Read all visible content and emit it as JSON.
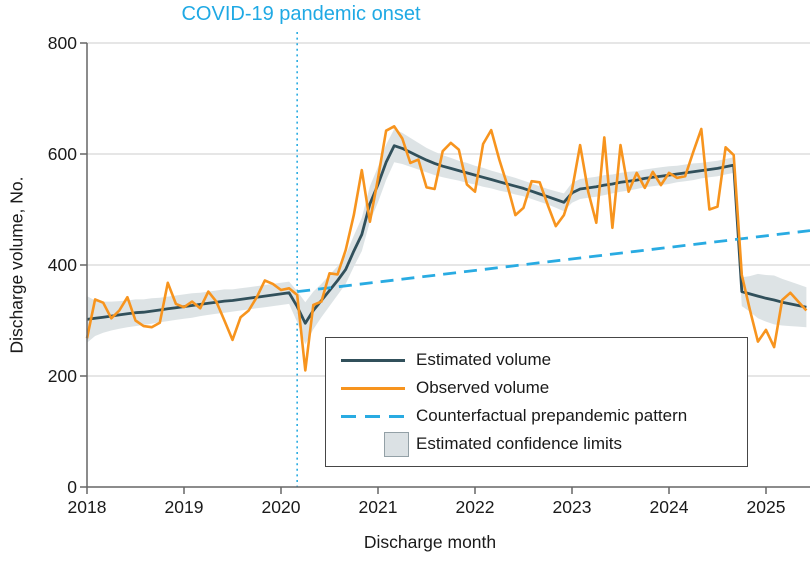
{
  "title": {
    "text": "COVID-19 pandemic onset"
  },
  "y_axis": {
    "label": "Discharge volume, No.",
    "ticks": [
      0,
      200,
      400,
      600,
      800
    ],
    "range": [
      0,
      800
    ]
  },
  "x_axis": {
    "label": "Discharge month",
    "ticks": [
      2018,
      2019,
      2020,
      2021,
      2022,
      2023,
      2024,
      2025
    ]
  },
  "legend": {
    "items": [
      {
        "key": "estimated",
        "label": "Estimated volume"
      },
      {
        "key": "observed",
        "label": "Observed volume"
      },
      {
        "key": "counterfactual",
        "label": "Counterfactual prepandemic pattern"
      },
      {
        "key": "confidence",
        "label": "Estimated confidence limits"
      }
    ]
  },
  "colors": {
    "observed": "#F7941E",
    "estimated": "#31505B",
    "counterfactual": "#29ABE2",
    "annotation_line": "#29ABE2",
    "title_text": "#1FA9E4",
    "confidence_band": "#DBE1E4",
    "gridline": "#D8D8D8",
    "axis": "#666666",
    "text": "#1A1A1A"
  },
  "chart_data": {
    "type": "line",
    "x_unit": "month",
    "ylim": [
      0,
      800
    ],
    "grid": "horizontal",
    "legend_position": "inside-bottom-center",
    "annotations": {
      "vline_month": "2020-03",
      "vline_label": "COVID-19 pandemic onset"
    },
    "months": [
      "2018-01",
      "2018-02",
      "2018-03",
      "2018-04",
      "2018-05",
      "2018-06",
      "2018-07",
      "2018-08",
      "2018-09",
      "2018-10",
      "2018-11",
      "2018-12",
      "2019-01",
      "2019-02",
      "2019-03",
      "2019-04",
      "2019-05",
      "2019-06",
      "2019-07",
      "2019-08",
      "2019-09",
      "2019-10",
      "2019-11",
      "2019-12",
      "2020-01",
      "2020-02",
      "2020-03",
      "2020-04",
      "2020-05",
      "2020-06",
      "2020-07",
      "2020-08",
      "2020-09",
      "2020-10",
      "2020-11",
      "2020-12",
      "2021-01",
      "2021-02",
      "2021-03",
      "2021-04",
      "2021-05",
      "2021-06",
      "2021-07",
      "2021-08",
      "2021-09",
      "2021-10",
      "2021-11",
      "2021-12",
      "2022-01",
      "2022-02",
      "2022-03",
      "2022-04",
      "2022-05",
      "2022-06",
      "2022-07",
      "2022-08",
      "2022-09",
      "2022-10",
      "2022-11",
      "2022-12",
      "2023-01",
      "2023-02",
      "2023-03",
      "2023-04",
      "2023-05",
      "2023-06",
      "2023-07",
      "2023-08",
      "2023-09",
      "2023-10",
      "2023-11",
      "2023-12",
      "2024-01",
      "2024-02",
      "2024-03",
      "2024-04",
      "2024-05",
      "2024-06",
      "2024-07",
      "2024-08",
      "2024-09",
      "2024-10",
      "2024-11",
      "2024-12",
      "2025-01",
      "2025-02",
      "2025-03",
      "2025-04",
      "2025-05",
      "2025-06"
    ],
    "series": [
      {
        "name": "Estimated volume",
        "values": [
          302,
          304,
          306,
          308,
          310,
          312,
          314,
          315,
          317,
          319,
          321,
          323,
          325,
          327,
          329,
          331,
          333,
          335,
          336,
          338,
          340,
          342,
          344,
          346,
          348,
          350,
          325,
          295,
          318,
          336,
          354,
          372,
          392,
          425,
          455,
          510,
          545,
          585,
          615,
          610,
          603,
          596,
          589,
          583,
          578,
          574,
          570,
          566,
          562,
          558,
          554,
          550,
          546,
          542,
          538,
          533,
          528,
          523,
          518,
          513,
          530,
          537,
          539,
          541,
          544,
          546,
          549,
          551,
          553,
          556,
          558,
          560,
          562,
          564,
          566,
          568,
          570,
          572,
          574,
          577,
          580,
          352,
          348,
          344,
          340,
          337,
          333,
          330,
          327,
          324
        ]
      },
      {
        "name": "Observed volume",
        "values": [
          268,
          338,
          332,
          304,
          318,
          342,
          300,
          290,
          288,
          296,
          368,
          330,
          324,
          334,
          322,
          352,
          334,
          300,
          265,
          306,
          318,
          342,
          372,
          366,
          355,
          358,
          346,
          210,
          328,
          334,
          385,
          383,
          427,
          490,
          571,
          478,
          556,
          642,
          650,
          628,
          584,
          590,
          540,
          537,
          605,
          620,
          608,
          545,
          532,
          618,
          643,
          590,
          544,
          490,
          503,
          551,
          549,
          508,
          470,
          490,
          535,
          616,
          532,
          476,
          630,
          467,
          616,
          532,
          566,
          539,
          568,
          544,
          566,
          557,
          560,
          604,
          645,
          500,
          505,
          612,
          598,
          382,
          320,
          262,
          283,
          252,
          337,
          350,
          334,
          318
        ]
      },
      {
        "name": "Counterfactual prepandemic pattern",
        "start_month": "2020-03",
        "start_value": 352,
        "end_month": "2025-06",
        "end_value": 462
      },
      {
        "name": "Estimated confidence limits",
        "half_widths": [
          42,
          32,
          28,
          26,
          25,
          24,
          24,
          23,
          23,
          22,
          22,
          22,
          22,
          22,
          21,
          21,
          21,
          21,
          20,
          20,
          20,
          20,
          20,
          20,
          20,
          20,
          28,
          38,
          34,
          30,
          28,
          26,
          26,
          28,
          30,
          32,
          32,
          32,
          30,
          28,
          26,
          24,
          22,
          21,
          20,
          19,
          18,
          18,
          17,
          17,
          16,
          16,
          15,
          15,
          14,
          14,
          14,
          14,
          15,
          16,
          18,
          18,
          18,
          18,
          18,
          17,
          17,
          17,
          16,
          16,
          16,
          16,
          16,
          15,
          15,
          15,
          14,
          14,
          14,
          14,
          14,
          26,
          32,
          40,
          42,
          44,
          42,
          40,
          38,
          36
        ]
      }
    ]
  }
}
